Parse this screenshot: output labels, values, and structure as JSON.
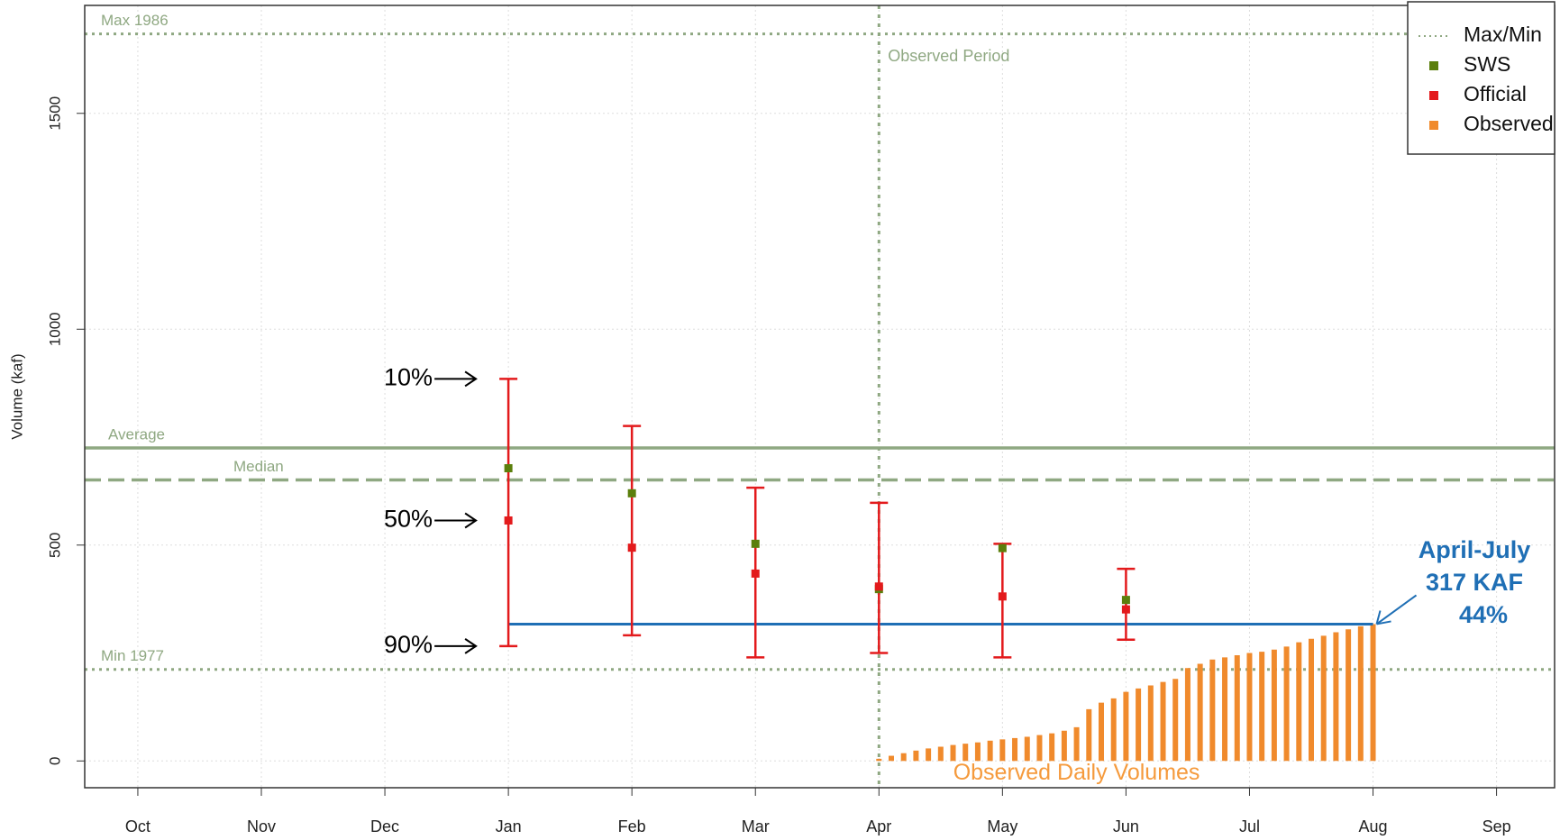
{
  "chart_data": {
    "type": "forecast",
    "y_label": "Volume (kaf)",
    "xlim": [
      -0.43,
      11.47
    ],
    "xticks": [
      {
        "value": 0,
        "label": "Oct"
      },
      {
        "value": 1,
        "label": "Nov"
      },
      {
        "value": 2,
        "label": "Dec"
      },
      {
        "value": 3,
        "label": "Jan"
      },
      {
        "value": 4,
        "label": "Feb"
      },
      {
        "value": 5,
        "label": "Mar"
      },
      {
        "value": 6,
        "label": "Apr"
      },
      {
        "value": 7,
        "label": "May"
      },
      {
        "value": 8,
        "label": "Jun"
      },
      {
        "value": 9,
        "label": "Jul"
      },
      {
        "value": 10,
        "label": "Aug"
      },
      {
        "value": 11,
        "label": "Sep"
      }
    ],
    "ylim": [
      -62,
      1750
    ],
    "yticks": [
      0,
      500,
      1000,
      1500
    ],
    "grid": true,
    "legend": "top-right",
    "forecast_x": [
      3,
      4,
      5,
      6,
      7,
      8
    ],
    "series": [
      {
        "name": "Max/Min",
        "color": "#8fa882",
        "values": [
          1684,
          212
        ],
        "labels": [
          "Max 1986",
          "Min 1977"
        ]
      },
      {
        "name": "SWS",
        "color": "#5b7f0c",
        "values": [
          678,
          620,
          503,
          398,
          493,
          373
        ]
      },
      {
        "name": "Official",
        "color": "#e31a1c",
        "values": [
          557,
          494,
          434,
          404,
          381,
          351
        ],
        "upper": [
          885,
          776,
          633,
          598,
          503,
          445
        ],
        "lower": [
          266,
          291,
          240,
          250,
          240,
          281
        ]
      },
      {
        "name": "Observed",
        "color": "#f08a2c",
        "x": [
          6,
          6.1,
          6.2,
          6.3,
          6.4,
          6.5,
          6.6,
          6.7,
          6.8,
          6.9,
          7,
          7.1,
          7.2,
          7.3,
          7.4,
          7.5,
          7.6,
          7.7,
          7.8,
          7.9,
          8,
          8.1,
          8.2,
          8.3,
          8.4,
          8.5,
          8.6,
          8.7,
          8.8,
          8.9,
          9,
          9.1,
          9.2,
          9.3,
          9.4,
          9.5,
          9.6,
          9.7,
          9.8,
          9.9,
          10
        ],
        "values": [
          5,
          12,
          18,
          24,
          29,
          33,
          37,
          40,
          43,
          47,
          50,
          53,
          56,
          60,
          64,
          70,
          78,
          120,
          135,
          145,
          160,
          168,
          175,
          183,
          190,
          215,
          225,
          235,
          240,
          245,
          250,
          253,
          258,
          265,
          275,
          283,
          290,
          298,
          305,
          312,
          317
        ],
        "label": "Observed Daily Volumes"
      }
    ],
    "reference_lines": [
      {
        "label": "Average",
        "value": 725,
        "style": "solid"
      },
      {
        "label": "Median",
        "value": 651,
        "style": "dashed"
      }
    ],
    "observed_period": {
      "x": 6,
      "label": "Observed Period"
    },
    "percentile_labels": [
      "10%",
      "50%",
      "90%"
    ],
    "target": {
      "value": 317,
      "x": [
        3,
        10
      ],
      "color": "#1f6fb5",
      "label_lines": [
        "April-July",
        "317 KAF",
        "44%"
      ]
    }
  }
}
